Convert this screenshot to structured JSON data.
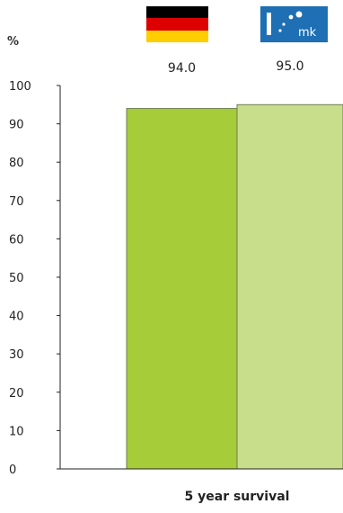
{
  "chart_data": {
    "type": "bar",
    "ylabel": "%",
    "xlabel": "5 year survival",
    "ylim": [
      0,
      100
    ],
    "yticks": [
      0,
      10,
      20,
      30,
      40,
      50,
      60,
      70,
      80,
      90,
      100
    ],
    "categories": [
      "Germany",
      "mk"
    ],
    "values": [
      94.0,
      95.0
    ],
    "value_labels": [
      "94.0",
      "95.0"
    ],
    "colors": [
      "#a6cc3a",
      "#c8de8a"
    ],
    "category_icons": [
      "germany-flag",
      "mk-logo"
    ],
    "grid": false
  },
  "logos": {
    "mk_text": "mk"
  }
}
